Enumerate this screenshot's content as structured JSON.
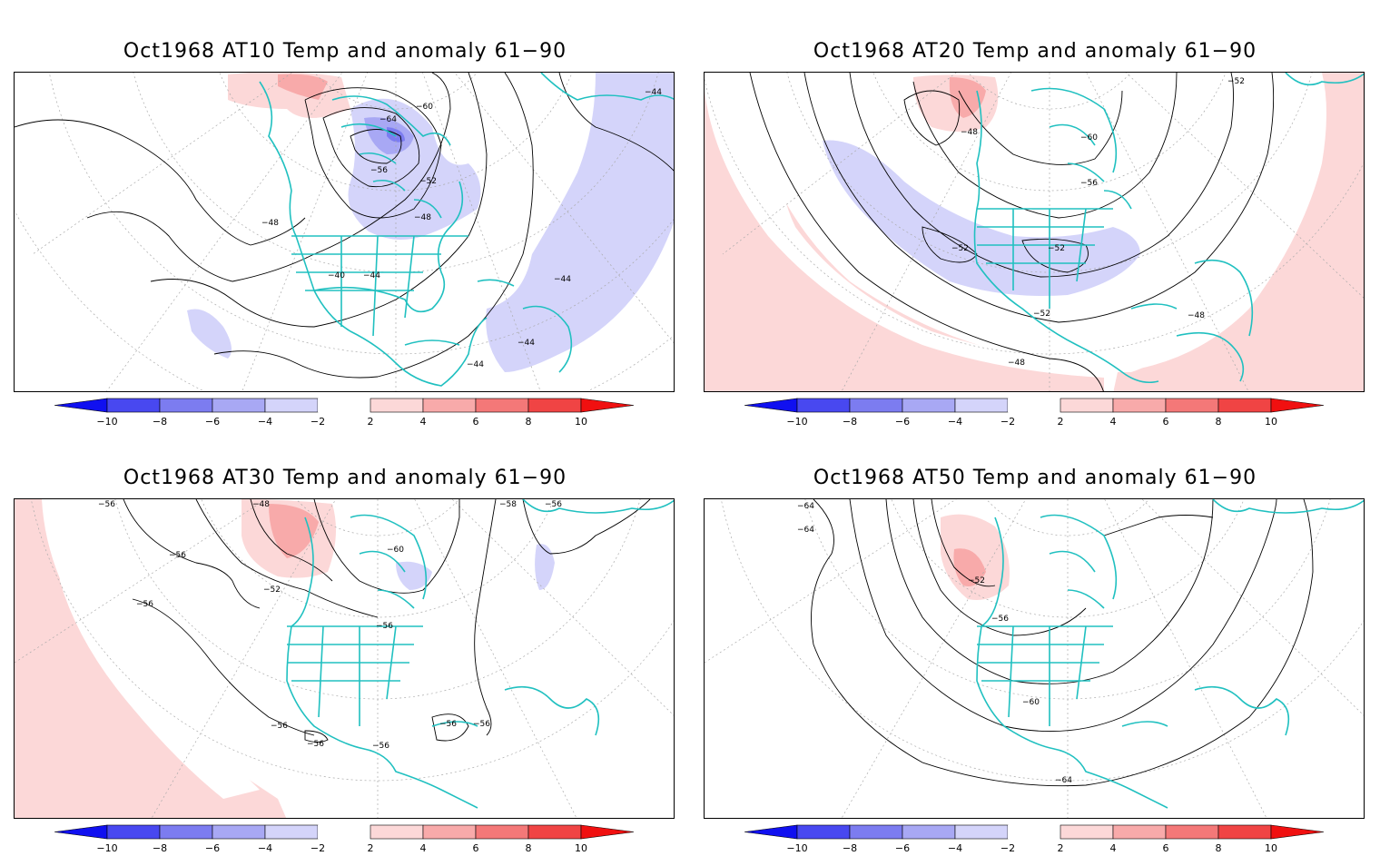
{
  "colors": {
    "coast": "#20c0c0",
    "contour": "#000000",
    "grid": "#aaaaaa",
    "neg": [
      "#1010f0",
      "#4848f0",
      "#7c7cf0",
      "#a8a8f4",
      "#d4d4fa"
    ],
    "pos": [
      "#fcd8d8",
      "#f8aaaa",
      "#f47878",
      "#f04444",
      "#f01010"
    ]
  },
  "colorbar": {
    "ticks": [
      "−10",
      "−8",
      "−6",
      "−4",
      "−2",
      "2",
      "4",
      "6",
      "8",
      "10"
    ]
  },
  "panels": [
    {
      "title": "Oct1968 AT10 Temp and anomaly 61−90",
      "contour_labels": [
        "−64",
        "−60",
        "−56",
        "−52",
        "−48",
        "−48",
        "−44",
        "−40",
        "−44",
        "−44",
        "−44",
        "−44"
      ]
    },
    {
      "title": "Oct1968 AT20 Temp and anomaly 61−90",
      "contour_labels": [
        "−52",
        "−48",
        "−60",
        "−56",
        "−52",
        "−52",
        "−52",
        "−48",
        "−48"
      ]
    },
    {
      "title": "Oct1968 AT30 Temp and anomaly 61−90",
      "contour_labels": [
        "−56",
        "−48",
        "−56",
        "−58",
        "−56",
        "−60",
        "−56",
        "−52",
        "−56",
        "−56",
        "−56",
        "−56",
        "−56",
        "−56"
      ]
    },
    {
      "title": "Oct1968 AT50 Temp and anomaly 61−90",
      "contour_labels": [
        "−64",
        "−64",
        "−52",
        "−56",
        "−60",
        "−64"
      ]
    }
  ]
}
